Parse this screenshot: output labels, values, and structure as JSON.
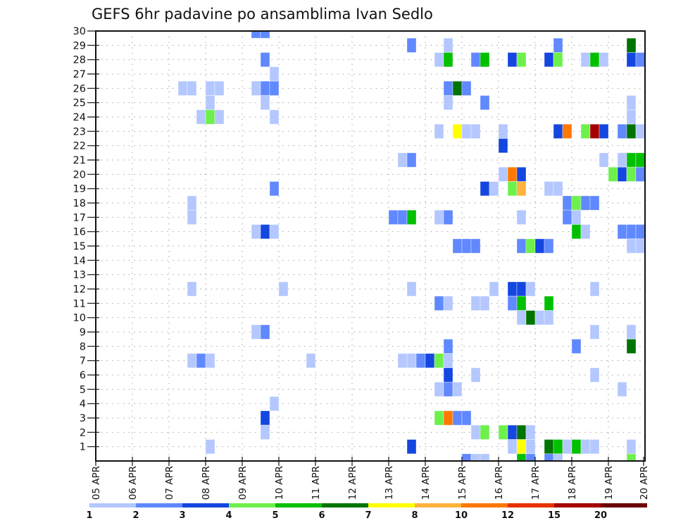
{
  "chart_data": {
    "type": "heatmap",
    "title": "GEFS 6hr padavine po ansamblima Ivan Sedlo",
    "xlabel": "",
    "ylabel": "",
    "xlim": [
      0,
      60
    ],
    "ylim": [
      0,
      30
    ],
    "grid": true,
    "xticks": [
      0,
      4,
      8,
      12,
      16,
      20,
      24,
      28,
      32,
      36,
      40,
      44,
      48,
      52,
      56,
      60
    ],
    "xtick_labels": [
      "05 APR",
      "06 APR",
      "07 APR",
      "08 APR",
      "09 APR",
      "10 APR",
      "11 APR",
      "12 APR",
      "13 APR",
      "14 APR",
      "15 APR",
      "16 APR",
      "17 APR",
      "18 APR",
      "19 APR",
      "20 APR"
    ],
    "yticks": [
      1,
      2,
      3,
      4,
      5,
      6,
      7,
      8,
      9,
      10,
      11,
      12,
      13,
      14,
      15,
      16,
      17,
      18,
      19,
      20,
      21,
      22,
      23,
      24,
      25,
      26,
      27,
      28,
      29,
      30
    ],
    "colorbar": {
      "labels": [
        "1",
        "2",
        "3",
        "4",
        "5",
        "6",
        "7",
        "8",
        "10",
        "12",
        "15",
        "20"
      ],
      "colors": [
        "#b4c8ff",
        "#6088ff",
        "#1446e0",
        "#6ef04c",
        "#00c000",
        "#007400",
        "#ffff00",
        "#ffb23c",
        "#ff7800",
        "#e63200",
        "#a50000",
        "#6e0000"
      ],
      "placement": "bottom"
    },
    "cells": [
      {
        "t": 17,
        "m": 30,
        "lvl": 1
      },
      {
        "t": 18,
        "m": 30,
        "lvl": 1
      },
      {
        "t": 34,
        "m": 29,
        "lvl": 1
      },
      {
        "t": 38,
        "m": 29,
        "lvl": 0
      },
      {
        "t": 50,
        "m": 29,
        "lvl": 1
      },
      {
        "t": 58,
        "m": 29,
        "lvl": 5
      },
      {
        "t": 18,
        "m": 28,
        "lvl": 1
      },
      {
        "t": 37,
        "m": 28,
        "lvl": 0
      },
      {
        "t": 38,
        "m": 28,
        "lvl": 4
      },
      {
        "t": 41,
        "m": 28,
        "lvl": 1
      },
      {
        "t": 42,
        "m": 28,
        "lvl": 4
      },
      {
        "t": 45,
        "m": 28,
        "lvl": 2
      },
      {
        "t": 46,
        "m": 28,
        "lvl": 3
      },
      {
        "t": 49,
        "m": 28,
        "lvl": 2
      },
      {
        "t": 50,
        "m": 28,
        "lvl": 3
      },
      {
        "t": 53,
        "m": 28,
        "lvl": 0
      },
      {
        "t": 54,
        "m": 28,
        "lvl": 4
      },
      {
        "t": 55,
        "m": 28,
        "lvl": 0
      },
      {
        "t": 58,
        "m": 28,
        "lvl": 2
      },
      {
        "t": 59,
        "m": 28,
        "lvl": 1
      },
      {
        "t": 19,
        "m": 27,
        "lvl": 0
      },
      {
        "t": 9,
        "m": 26,
        "lvl": 0
      },
      {
        "t": 10,
        "m": 26,
        "lvl": 0
      },
      {
        "t": 12,
        "m": 26,
        "lvl": 0
      },
      {
        "t": 13,
        "m": 26,
        "lvl": 0
      },
      {
        "t": 17,
        "m": 26,
        "lvl": 0
      },
      {
        "t": 18,
        "m": 26,
        "lvl": 1
      },
      {
        "t": 19,
        "m": 26,
        "lvl": 1
      },
      {
        "t": 38,
        "m": 26,
        "lvl": 1
      },
      {
        "t": 39,
        "m": 26,
        "lvl": 5
      },
      {
        "t": 40,
        "m": 26,
        "lvl": 1
      },
      {
        "t": 12,
        "m": 25,
        "lvl": 0
      },
      {
        "t": 18,
        "m": 25,
        "lvl": 0
      },
      {
        "t": 38,
        "m": 25,
        "lvl": 0
      },
      {
        "t": 42,
        "m": 25,
        "lvl": 1
      },
      {
        "t": 58,
        "m": 25,
        "lvl": 0
      },
      {
        "t": 11,
        "m": 24,
        "lvl": 0
      },
      {
        "t": 12,
        "m": 24,
        "lvl": 3
      },
      {
        "t": 13,
        "m": 24,
        "lvl": 0
      },
      {
        "t": 19,
        "m": 24,
        "lvl": 0
      },
      {
        "t": 58,
        "m": 24,
        "lvl": 0
      },
      {
        "t": 37,
        "m": 23,
        "lvl": 0
      },
      {
        "t": 39,
        "m": 23,
        "lvl": 6
      },
      {
        "t": 40,
        "m": 23,
        "lvl": 0
      },
      {
        "t": 41,
        "m": 23,
        "lvl": 0
      },
      {
        "t": 44,
        "m": 23,
        "lvl": 0
      },
      {
        "t": 50,
        "m": 23,
        "lvl": 2
      },
      {
        "t": 51,
        "m": 23,
        "lvl": 8
      },
      {
        "t": 53,
        "m": 23,
        "lvl": 3
      },
      {
        "t": 54,
        "m": 23,
        "lvl": 10
      },
      {
        "t": 55,
        "m": 23,
        "lvl": 2
      },
      {
        "t": 57,
        "m": 23,
        "lvl": 1
      },
      {
        "t": 58,
        "m": 23,
        "lvl": 5
      },
      {
        "t": 59,
        "m": 23,
        "lvl": 0
      },
      {
        "t": 44,
        "m": 22,
        "lvl": 2
      },
      {
        "t": 33,
        "m": 21,
        "lvl": 0
      },
      {
        "t": 34,
        "m": 21,
        "lvl": 1
      },
      {
        "t": 55,
        "m": 21,
        "lvl": 0
      },
      {
        "t": 57,
        "m": 21,
        "lvl": 0
      },
      {
        "t": 58,
        "m": 21,
        "lvl": 4
      },
      {
        "t": 59,
        "m": 21,
        "lvl": 4
      },
      {
        "t": 44,
        "m": 20,
        "lvl": 0
      },
      {
        "t": 45,
        "m": 20,
        "lvl": 8
      },
      {
        "t": 46,
        "m": 20,
        "lvl": 2
      },
      {
        "t": 56,
        "m": 20,
        "lvl": 3
      },
      {
        "t": 57,
        "m": 20,
        "lvl": 2
      },
      {
        "t": 58,
        "m": 20,
        "lvl": 3
      },
      {
        "t": 59,
        "m": 20,
        "lvl": 1
      },
      {
        "t": 19,
        "m": 19,
        "lvl": 1
      },
      {
        "t": 42,
        "m": 19,
        "lvl": 2
      },
      {
        "t": 43,
        "m": 19,
        "lvl": 0
      },
      {
        "t": 45,
        "m": 19,
        "lvl": 3
      },
      {
        "t": 46,
        "m": 19,
        "lvl": 7
      },
      {
        "t": 49,
        "m": 19,
        "lvl": 0
      },
      {
        "t": 50,
        "m": 19,
        "lvl": 0
      },
      {
        "t": 10,
        "m": 18,
        "lvl": 0
      },
      {
        "t": 51,
        "m": 18,
        "lvl": 1
      },
      {
        "t": 52,
        "m": 18,
        "lvl": 3
      },
      {
        "t": 53,
        "m": 18,
        "lvl": 1
      },
      {
        "t": 54,
        "m": 18,
        "lvl": 1
      },
      {
        "t": 10,
        "m": 17,
        "lvl": 0
      },
      {
        "t": 32,
        "m": 17,
        "lvl": 1
      },
      {
        "t": 33,
        "m": 17,
        "lvl": 1
      },
      {
        "t": 34,
        "m": 17,
        "lvl": 4
      },
      {
        "t": 37,
        "m": 17,
        "lvl": 0
      },
      {
        "t": 38,
        "m": 17,
        "lvl": 1
      },
      {
        "t": 46,
        "m": 17,
        "lvl": 0
      },
      {
        "t": 51,
        "m": 17,
        "lvl": 1
      },
      {
        "t": 52,
        "m": 17,
        "lvl": 0
      },
      {
        "t": 17,
        "m": 16,
        "lvl": 0
      },
      {
        "t": 18,
        "m": 16,
        "lvl": 2
      },
      {
        "t": 19,
        "m": 16,
        "lvl": 0
      },
      {
        "t": 52,
        "m": 16,
        "lvl": 4
      },
      {
        "t": 53,
        "m": 16,
        "lvl": 0
      },
      {
        "t": 57,
        "m": 16,
        "lvl": 1
      },
      {
        "t": 58,
        "m": 16,
        "lvl": 1
      },
      {
        "t": 59,
        "m": 16,
        "lvl": 1
      },
      {
        "t": 39,
        "m": 15,
        "lvl": 1
      },
      {
        "t": 40,
        "m": 15,
        "lvl": 1
      },
      {
        "t": 41,
        "m": 15,
        "lvl": 1
      },
      {
        "t": 46,
        "m": 15,
        "lvl": 1
      },
      {
        "t": 47,
        "m": 15,
        "lvl": 3
      },
      {
        "t": 48,
        "m": 15,
        "lvl": 2
      },
      {
        "t": 49,
        "m": 15,
        "lvl": 1
      },
      {
        "t": 58,
        "m": 15,
        "lvl": 0
      },
      {
        "t": 59,
        "m": 15,
        "lvl": 0
      },
      {
        "t": 10,
        "m": 12,
        "lvl": 0
      },
      {
        "t": 20,
        "m": 12,
        "lvl": 0
      },
      {
        "t": 34,
        "m": 12,
        "lvl": 0
      },
      {
        "t": 43,
        "m": 12,
        "lvl": 0
      },
      {
        "t": 45,
        "m": 12,
        "lvl": 2
      },
      {
        "t": 46,
        "m": 12,
        "lvl": 2
      },
      {
        "t": 47,
        "m": 12,
        "lvl": 0
      },
      {
        "t": 54,
        "m": 12,
        "lvl": 0
      },
      {
        "t": 37,
        "m": 11,
        "lvl": 1
      },
      {
        "t": 38,
        "m": 11,
        "lvl": 0
      },
      {
        "t": 41,
        "m": 11,
        "lvl": 0
      },
      {
        "t": 42,
        "m": 11,
        "lvl": 0
      },
      {
        "t": 45,
        "m": 11,
        "lvl": 1
      },
      {
        "t": 46,
        "m": 11,
        "lvl": 4
      },
      {
        "t": 49,
        "m": 11,
        "lvl": 4
      },
      {
        "t": 46,
        "m": 10,
        "lvl": 0
      },
      {
        "t": 47,
        "m": 10,
        "lvl": 5
      },
      {
        "t": 48,
        "m": 10,
        "lvl": 0
      },
      {
        "t": 49,
        "m": 10,
        "lvl": 0
      },
      {
        "t": 17,
        "m": 9,
        "lvl": 0
      },
      {
        "t": 18,
        "m": 9,
        "lvl": 1
      },
      {
        "t": 54,
        "m": 9,
        "lvl": 0
      },
      {
        "t": 58,
        "m": 9,
        "lvl": 0
      },
      {
        "t": 38,
        "m": 8,
        "lvl": 1
      },
      {
        "t": 52,
        "m": 8,
        "lvl": 1
      },
      {
        "t": 58,
        "m": 8,
        "lvl": 5
      },
      {
        "t": 10,
        "m": 7,
        "lvl": 0
      },
      {
        "t": 11,
        "m": 7,
        "lvl": 1
      },
      {
        "t": 12,
        "m": 7,
        "lvl": 0
      },
      {
        "t": 23,
        "m": 7,
        "lvl": 0
      },
      {
        "t": 33,
        "m": 7,
        "lvl": 0
      },
      {
        "t": 34,
        "m": 7,
        "lvl": 0
      },
      {
        "t": 35,
        "m": 7,
        "lvl": 1
      },
      {
        "t": 36,
        "m": 7,
        "lvl": 2
      },
      {
        "t": 37,
        "m": 7,
        "lvl": 3
      },
      {
        "t": 38,
        "m": 7,
        "lvl": 0
      },
      {
        "t": 38,
        "m": 6,
        "lvl": 2
      },
      {
        "t": 41,
        "m": 6,
        "lvl": 0
      },
      {
        "t": 54,
        "m": 6,
        "lvl": 0
      },
      {
        "t": 37,
        "m": 5,
        "lvl": 0
      },
      {
        "t": 38,
        "m": 5,
        "lvl": 1
      },
      {
        "t": 39,
        "m": 5,
        "lvl": 0
      },
      {
        "t": 57,
        "m": 5,
        "lvl": 0
      },
      {
        "t": 19,
        "m": 4,
        "lvl": 0
      },
      {
        "t": 18,
        "m": 3,
        "lvl": 2
      },
      {
        "t": 37,
        "m": 3,
        "lvl": 3
      },
      {
        "t": 38,
        "m": 3,
        "lvl": 8
      },
      {
        "t": 39,
        "m": 3,
        "lvl": 1
      },
      {
        "t": 40,
        "m": 3,
        "lvl": 1
      },
      {
        "t": 18,
        "m": 2,
        "lvl": 0
      },
      {
        "t": 41,
        "m": 2,
        "lvl": 0
      },
      {
        "t": 42,
        "m": 2,
        "lvl": 3
      },
      {
        "t": 44,
        "m": 2,
        "lvl": 3
      },
      {
        "t": 45,
        "m": 2,
        "lvl": 2
      },
      {
        "t": 46,
        "m": 2,
        "lvl": 5
      },
      {
        "t": 47,
        "m": 2,
        "lvl": 0
      },
      {
        "t": 12,
        "m": 1,
        "lvl": 0
      },
      {
        "t": 34,
        "m": 1,
        "lvl": 2
      },
      {
        "t": 45,
        "m": 1,
        "lvl": 0
      },
      {
        "t": 46,
        "m": 1,
        "lvl": 6
      },
      {
        "t": 47,
        "m": 1,
        "lvl": 0
      },
      {
        "t": 49,
        "m": 1,
        "lvl": 5
      },
      {
        "t": 50,
        "m": 1,
        "lvl": 4
      },
      {
        "t": 51,
        "m": 1,
        "lvl": 0
      },
      {
        "t": 52,
        "m": 1,
        "lvl": 4
      },
      {
        "t": 53,
        "m": 1,
        "lvl": 0
      },
      {
        "t": 54,
        "m": 1,
        "lvl": 0
      },
      {
        "t": 58,
        "m": 1,
        "lvl": 0
      },
      {
        "t": 40,
        "m": 0,
        "lvl": 1
      },
      {
        "t": 41,
        "m": 0,
        "lvl": 0
      },
      {
        "t": 42,
        "m": 0,
        "lvl": 0
      },
      {
        "t": 46,
        "m": 0,
        "lvl": 4
      },
      {
        "t": 47,
        "m": 0,
        "lvl": 1
      },
      {
        "t": 49,
        "m": 0,
        "lvl": 1
      },
      {
        "t": 50,
        "m": 0,
        "lvl": 0
      },
      {
        "t": 58,
        "m": 0,
        "lvl": 3
      }
    ]
  }
}
